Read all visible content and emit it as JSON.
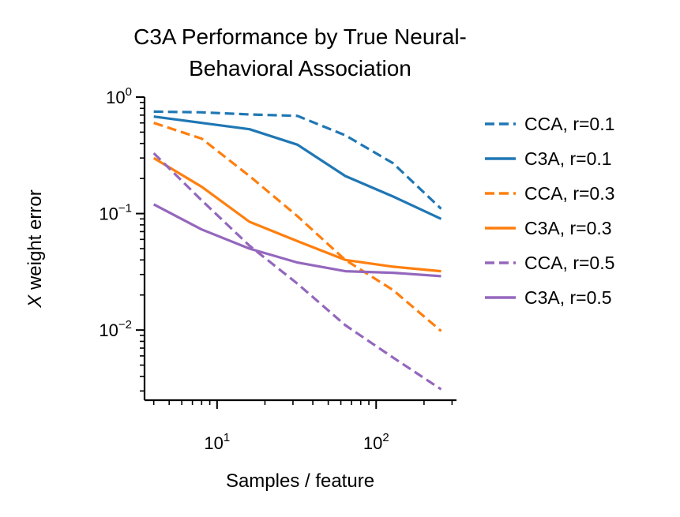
{
  "chart_data": {
    "type": "line",
    "title": [
      "C3A Performance by True Neural-",
      "Behavioral Association"
    ],
    "xlabel": "Samples / feature",
    "ylabel_italic": "X",
    "ylabel_rest": " weight error",
    "x_scale": "log",
    "y_scale": "log",
    "xlim": [
      3.5,
      320
    ],
    "ylim": [
      0.0025,
      1.0
    ],
    "x_ticks": [
      {
        "value": 10,
        "base": "10",
        "exp": "1"
      },
      {
        "value": 100,
        "base": "10",
        "exp": "2"
      }
    ],
    "y_ticks": [
      {
        "value": 1,
        "base": "10",
        "exp": "0"
      },
      {
        "value": 0.1,
        "base": "10",
        "exp": "−1"
      },
      {
        "value": 0.01,
        "base": "10",
        "exp": "−2"
      }
    ],
    "grid": false,
    "legend_position": "outside right",
    "series": [
      {
        "name": "CCA, r=0.1",
        "color": "#1f77b4",
        "dash": true,
        "x": [
          4,
          8,
          16,
          32,
          64,
          128,
          256
        ],
        "y": [
          0.75,
          0.74,
          0.71,
          0.69,
          0.47,
          0.27,
          0.11
        ]
      },
      {
        "name": "C3A, r=0.1",
        "color": "#1f77b4",
        "dash": false,
        "x": [
          4,
          8,
          16,
          32,
          64,
          128,
          256
        ],
        "y": [
          0.68,
          0.6,
          0.53,
          0.39,
          0.21,
          0.14,
          0.09
        ]
      },
      {
        "name": "CCA, r=0.3",
        "color": "#ff7f0e",
        "dash": true,
        "x": [
          4,
          8,
          16,
          32,
          64,
          128,
          256
        ],
        "y": [
          0.6,
          0.44,
          0.21,
          0.095,
          0.04,
          0.022,
          0.0098
        ]
      },
      {
        "name": "C3A, r=0.3",
        "color": "#ff7f0e",
        "dash": false,
        "x": [
          4,
          8,
          16,
          32,
          64,
          128,
          256
        ],
        "y": [
          0.3,
          0.17,
          0.085,
          0.058,
          0.04,
          0.035,
          0.032
        ]
      },
      {
        "name": "CCA, r=0.5",
        "color": "#9467bd",
        "dash": true,
        "x": [
          4,
          8,
          16,
          32,
          64,
          128,
          256
        ],
        "y": [
          0.33,
          0.13,
          0.053,
          0.025,
          0.011,
          0.0058,
          0.0031
        ]
      },
      {
        "name": "C3A, r=0.5",
        "color": "#9467bd",
        "dash": false,
        "x": [
          4,
          8,
          16,
          32,
          64,
          128,
          256
        ],
        "y": [
          0.12,
          0.073,
          0.05,
          0.038,
          0.032,
          0.031,
          0.029
        ]
      }
    ]
  }
}
